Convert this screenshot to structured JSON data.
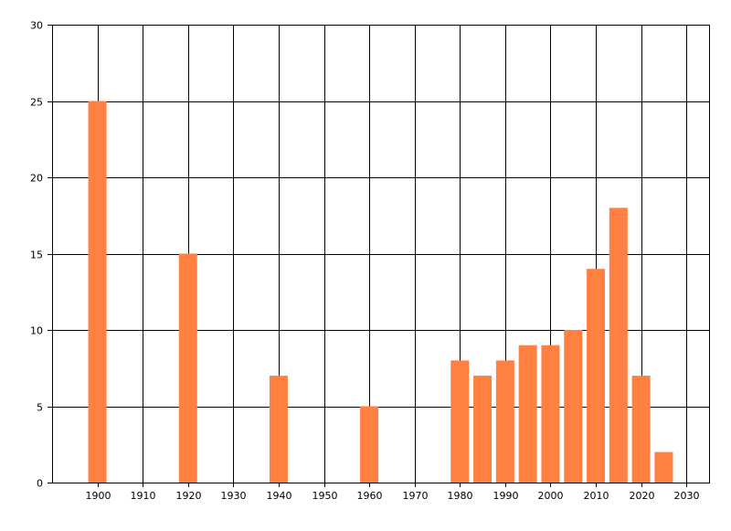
{
  "chart_data": {
    "type": "bar",
    "x": [
      1900,
      1920,
      1940,
      1960,
      1980,
      1985,
      1990,
      1995,
      2000,
      2005,
      2010,
      2015,
      2020,
      2025
    ],
    "values": [
      25,
      15,
      7,
      5,
      8,
      7,
      8,
      9,
      9,
      10,
      14,
      18,
      7,
      2
    ],
    "xlim": [
      1890,
      2035
    ],
    "ylim": [
      0,
      30
    ],
    "x_ticks": [
      "1900",
      "1910",
      "1920",
      "1930",
      "1940",
      "1950",
      "1960",
      "1970",
      "1980",
      "1990",
      "2000",
      "2010",
      "2020",
      "2030"
    ],
    "y_ticks": [
      "0",
      "5",
      "10",
      "15",
      "20",
      "25",
      "30"
    ],
    "grid": true,
    "bar_color": "#ff8040",
    "title": "",
    "xlabel": "",
    "ylabel": ""
  }
}
